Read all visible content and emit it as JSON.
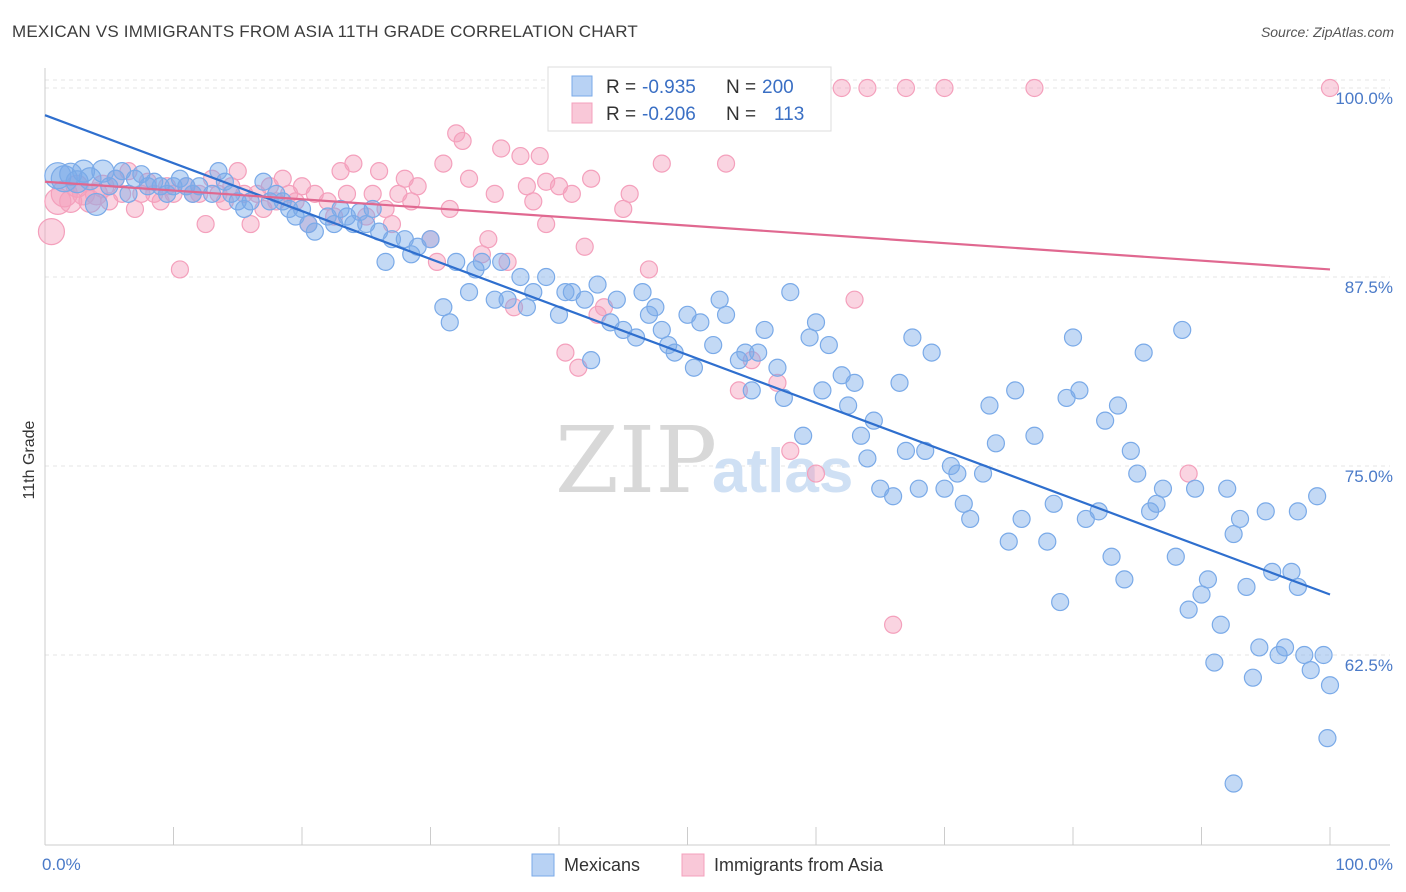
{
  "title": "MEXICAN VS IMMIGRANTS FROM ASIA 11TH GRADE CORRELATION CHART",
  "source": "Source: ZipAtlas.com",
  "watermark": {
    "zip": "ZIP",
    "atlas": "atlas"
  },
  "chart_data": {
    "type": "scatter",
    "ylabel": "11th Grade",
    "xlim": [
      0,
      100
    ],
    "ylim": [
      50,
      102
    ],
    "x_tick_labels": [
      "0.0%",
      "100.0%"
    ],
    "y_ticks": [
      62.5,
      75.0,
      87.5,
      100.0
    ],
    "y_tick_labels": [
      "62.5%",
      "75.0%",
      "87.5%",
      "100.0%"
    ],
    "grid": true,
    "legend_position": "top-center",
    "colors": {
      "mexicans": "#7aaae8",
      "asia": "#f4a0bc",
      "mexicans_line": "#2f6fce",
      "asia_line": "#e06890"
    },
    "stats_legend": [
      {
        "r_label": "R = ",
        "r_value": "-0.935",
        "n_label": "N = ",
        "n_value": "200"
      },
      {
        "r_label": "R = ",
        "r_value": "-0.206",
        "n_label": "N = ",
        "n_value": "113"
      }
    ],
    "series": [
      {
        "name": "Mexicans",
        "trend": {
          "x": [
            0,
            100
          ],
          "y": [
            98.2,
            66.5
          ]
        },
        "points": [
          [
            1,
            94.2
          ],
          [
            1.5,
            94
          ],
          [
            2,
            94.3
          ],
          [
            2.5,
            93.8
          ],
          [
            3,
            94.5
          ],
          [
            3.5,
            94
          ],
          [
            4,
            92.3
          ],
          [
            4.5,
            94.5
          ],
          [
            5,
            93.5
          ],
          [
            5.5,
            94
          ],
          [
            6,
            94.5
          ],
          [
            6.5,
            93
          ],
          [
            7,
            94
          ],
          [
            7.5,
            94.3
          ],
          [
            8,
            93.5
          ],
          [
            8.5,
            93.8
          ],
          [
            9,
            93.5
          ],
          [
            9.5,
            93
          ],
          [
            10,
            93.5
          ],
          [
            10.5,
            94
          ],
          [
            11,
            93.5
          ],
          [
            11.5,
            93
          ],
          [
            12,
            93.5
          ],
          [
            13,
            93
          ],
          [
            13.5,
            94.5
          ],
          [
            14,
            93.8
          ],
          [
            14.5,
            93
          ],
          [
            15,
            92.5
          ],
          [
            15.5,
            92
          ],
          [
            16,
            92.5
          ],
          [
            17,
            93.8
          ],
          [
            17.5,
            92.5
          ],
          [
            18,
            93
          ],
          [
            18.5,
            92.5
          ],
          [
            19,
            92
          ],
          [
            19.5,
            91.5
          ],
          [
            20,
            92
          ],
          [
            20.5,
            91
          ],
          [
            21,
            90.5
          ],
          [
            22,
            91.5
          ],
          [
            22.5,
            91
          ],
          [
            23,
            92
          ],
          [
            23.5,
            91.5
          ],
          [
            24,
            91
          ],
          [
            24.5,
            91.8
          ],
          [
            25,
            91
          ],
          [
            25.5,
            92
          ],
          [
            26,
            90.5
          ],
          [
            26.5,
            88.5
          ],
          [
            27,
            90
          ],
          [
            28,
            90
          ],
          [
            28.5,
            89
          ],
          [
            29,
            89.5
          ],
          [
            30,
            90
          ],
          [
            31,
            85.5
          ],
          [
            31.5,
            84.5
          ],
          [
            32,
            88.5
          ],
          [
            33,
            86.5
          ],
          [
            33.5,
            88
          ],
          [
            34,
            88.5
          ],
          [
            35,
            86
          ],
          [
            35.5,
            88.5
          ],
          [
            36,
            86
          ],
          [
            37,
            87.5
          ],
          [
            37.5,
            85.5
          ],
          [
            38,
            86.5
          ],
          [
            39,
            87.5
          ],
          [
            40,
            85
          ],
          [
            40.5,
            86.5
          ],
          [
            41,
            86.5
          ],
          [
            42,
            86
          ],
          [
            42.5,
            82
          ],
          [
            43,
            87
          ],
          [
            44,
            84.5
          ],
          [
            44.5,
            86
          ],
          [
            45,
            84
          ],
          [
            46,
            83.5
          ],
          [
            46.5,
            86.5
          ],
          [
            47,
            85
          ],
          [
            47.5,
            85.5
          ],
          [
            48,
            84
          ],
          [
            48.5,
            83
          ],
          [
            49,
            82.5
          ],
          [
            50,
            85
          ],
          [
            50.5,
            81.5
          ],
          [
            51,
            84.5
          ],
          [
            52,
            83
          ],
          [
            52.5,
            86
          ],
          [
            53,
            85
          ],
          [
            54,
            82
          ],
          [
            54.5,
            82.5
          ],
          [
            55,
            80
          ],
          [
            55.5,
            82.5
          ],
          [
            56,
            84
          ],
          [
            57,
            81.5
          ],
          [
            57.5,
            79.5
          ],
          [
            58,
            86.5
          ],
          [
            59,
            77
          ],
          [
            59.5,
            83.5
          ],
          [
            60,
            84.5
          ],
          [
            60.5,
            80
          ],
          [
            61,
            83
          ],
          [
            62,
            81
          ],
          [
            62.5,
            79
          ],
          [
            63,
            80.5
          ],
          [
            63.5,
            77
          ],
          [
            64,
            75.5
          ],
          [
            64.5,
            78
          ],
          [
            65,
            73.5
          ],
          [
            66,
            73
          ],
          [
            66.5,
            80.5
          ],
          [
            67,
            76
          ],
          [
            67.5,
            83.5
          ],
          [
            68,
            73.5
          ],
          [
            68.5,
            76
          ],
          [
            69,
            82.5
          ],
          [
            70,
            73.5
          ],
          [
            70.5,
            75
          ],
          [
            71,
            74.5
          ],
          [
            71.5,
            72.5
          ],
          [
            72,
            71.5
          ],
          [
            73,
            74.5
          ],
          [
            73.5,
            79
          ],
          [
            74,
            76.5
          ],
          [
            75,
            70
          ],
          [
            75.5,
            80
          ],
          [
            76,
            71.5
          ],
          [
            77,
            77
          ],
          [
            78,
            70
          ],
          [
            78.5,
            72.5
          ],
          [
            79,
            66
          ],
          [
            79.5,
            79.5
          ],
          [
            80,
            83.5
          ],
          [
            80.5,
            80
          ],
          [
            81,
            71.5
          ],
          [
            82,
            72
          ],
          [
            82.5,
            78
          ],
          [
            83,
            69
          ],
          [
            83.5,
            79
          ],
          [
            84,
            67.5
          ],
          [
            84.5,
            76
          ],
          [
            85,
            74.5
          ],
          [
            85.5,
            82.5
          ],
          [
            86,
            72
          ],
          [
            86.5,
            72.5
          ],
          [
            87,
            73.5
          ],
          [
            88,
            69
          ],
          [
            88.5,
            84
          ],
          [
            89,
            65.5
          ],
          [
            89.5,
            73.5
          ],
          [
            90,
            66.5
          ],
          [
            90.5,
            67.5
          ],
          [
            91,
            62
          ],
          [
            91.5,
            64.5
          ],
          [
            92,
            73.5
          ],
          [
            92.5,
            70.5
          ],
          [
            93,
            71.5
          ],
          [
            93.5,
            67
          ],
          [
            94,
            61
          ],
          [
            94.5,
            63
          ],
          [
            95,
            72
          ],
          [
            95.5,
            68
          ],
          [
            96,
            62.5
          ],
          [
            96.5,
            63
          ],
          [
            97,
            68
          ],
          [
            97.5,
            72
          ],
          [
            98,
            62.5
          ],
          [
            98.5,
            61.5
          ],
          [
            99,
            73
          ],
          [
            99.5,
            62.5
          ],
          [
            100,
            60.5
          ],
          [
            99.8,
            57
          ],
          [
            92.5,
            54
          ],
          [
            97.5,
            67
          ]
        ]
      },
      {
        "name": "Immigrants from Asia",
        "trend": {
          "x": [
            0,
            100
          ],
          "y": [
            93.8,
            88
          ]
        },
        "points": [
          [
            0.5,
            90.5
          ],
          [
            1,
            92.5
          ],
          [
            1.5,
            93
          ],
          [
            2,
            92.5
          ],
          [
            2.5,
            93.5
          ],
          [
            3,
            93
          ],
          [
            3.5,
            92.5
          ],
          [
            4,
            93
          ],
          [
            4.5,
            93.5
          ],
          [
            5,
            92.5
          ],
          [
            5.5,
            94
          ],
          [
            6,
            93
          ],
          [
            6.5,
            94.5
          ],
          [
            7,
            92
          ],
          [
            7.5,
            93
          ],
          [
            8,
            93.8
          ],
          [
            8.5,
            93
          ],
          [
            9,
            92.5
          ],
          [
            9.5,
            93.5
          ],
          [
            10,
            93
          ],
          [
            10.5,
            88
          ],
          [
            11,
            93.5
          ],
          [
            11.5,
            93
          ],
          [
            12,
            93
          ],
          [
            12.5,
            91
          ],
          [
            13,
            94
          ],
          [
            13.5,
            93
          ],
          [
            14,
            92.5
          ],
          [
            14.5,
            93.5
          ],
          [
            15,
            94.5
          ],
          [
            15.5,
            93
          ],
          [
            16,
            91
          ],
          [
            16.5,
            93
          ],
          [
            17,
            92
          ],
          [
            17.5,
            93.5
          ],
          [
            18,
            92.5
          ],
          [
            18.5,
            94
          ],
          [
            19,
            93
          ],
          [
            19.5,
            92.5
          ],
          [
            20,
            93.5
          ],
          [
            20.5,
            91
          ],
          [
            21,
            93
          ],
          [
            22,
            92.5
          ],
          [
            22.5,
            91.5
          ],
          [
            23,
            94.5
          ],
          [
            23.5,
            93
          ],
          [
            24,
            95
          ],
          [
            25,
            91.5
          ],
          [
            25.5,
            93
          ],
          [
            26,
            94.5
          ],
          [
            26.5,
            92
          ],
          [
            27,
            91
          ],
          [
            27.5,
            93
          ],
          [
            28,
            94
          ],
          [
            28.5,
            92.5
          ],
          [
            29,
            93.5
          ],
          [
            30,
            90
          ],
          [
            30.5,
            88.5
          ],
          [
            31,
            95
          ],
          [
            31.5,
            92
          ],
          [
            32,
            97
          ],
          [
            32.5,
            96.5
          ],
          [
            33,
            94
          ],
          [
            34,
            89
          ],
          [
            34.5,
            90
          ],
          [
            35,
            93
          ],
          [
            35.5,
            96
          ],
          [
            36,
            88.5
          ],
          [
            37,
            95.5
          ],
          [
            37.5,
            93.5
          ],
          [
            38,
            92.5
          ],
          [
            38.5,
            95.5
          ],
          [
            39,
            91
          ],
          [
            40,
            93.5
          ],
          [
            40.5,
            82.5
          ],
          [
            41,
            93
          ],
          [
            41.5,
            81.5
          ],
          [
            42,
            89.5
          ],
          [
            43,
            85
          ],
          [
            43.5,
            85.5
          ],
          [
            44,
            99
          ],
          [
            45,
            92
          ],
          [
            45.5,
            93
          ],
          [
            46,
            98.5
          ],
          [
            47,
            88
          ],
          [
            48,
            95
          ],
          [
            49,
            99.5
          ],
          [
            50,
            100
          ],
          [
            51,
            99.5
          ],
          [
            52,
            99
          ],
          [
            53,
            95
          ],
          [
            54,
            80
          ],
          [
            55,
            82
          ],
          [
            56,
            99.5
          ],
          [
            57,
            80.5
          ],
          [
            58,
            76
          ],
          [
            60,
            74.5
          ],
          [
            62,
            100
          ],
          [
            63,
            86
          ],
          [
            64,
            100
          ],
          [
            66,
            64.5
          ],
          [
            67,
            100
          ],
          [
            70,
            100
          ],
          [
            77,
            100
          ],
          [
            89,
            74.5
          ],
          [
            100,
            100
          ],
          [
            39,
            93.8
          ],
          [
            42.5,
            94
          ],
          [
            36.5,
            85.5
          ]
        ]
      }
    ]
  },
  "bottom_legend": [
    {
      "label": "Mexicans"
    },
    {
      "label": "Immigrants from Asia"
    }
  ]
}
